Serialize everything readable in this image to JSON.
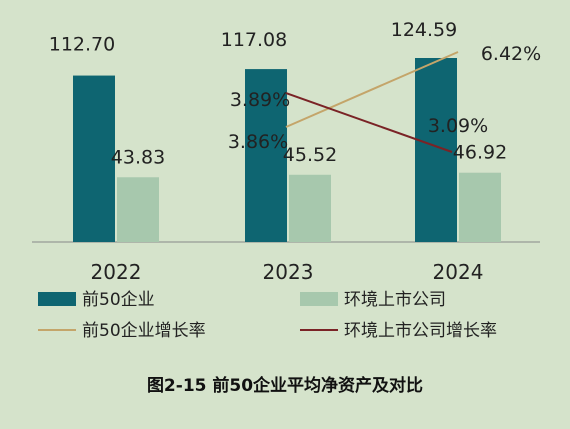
{
  "chart_data": {
    "type": "bar",
    "title": "图2-15 前50企业平均净资产及对比",
    "categories": [
      "2022",
      "2023",
      "2024"
    ],
    "series": [
      {
        "name": "前50企业",
        "kind": "bar",
        "color": "#0e6571",
        "values": [
          112.7,
          117.08,
          124.59
        ],
        "labels": [
          "112.70",
          "117.08",
          "124.59"
        ]
      },
      {
        "name": "环境上市公司",
        "kind": "bar",
        "color": "#a7c8ad",
        "values": [
          43.83,
          45.52,
          46.92
        ],
        "labels": [
          "43.83",
          "45.52",
          "46.92"
        ]
      },
      {
        "name": "前50企业增长率",
        "kind": "line",
        "color": "#c4a56a",
        "x": [
          "2023",
          "2024"
        ],
        "values": [
          3.89,
          6.42
        ],
        "labels": [
          "3.89%",
          "6.42%"
        ]
      },
      {
        "name": "环境上市公司增长率",
        "kind": "line",
        "color": "#7a2326",
        "x": [
          "2023",
          "2024"
        ],
        "values": [
          3.86,
          3.09
        ],
        "labels": [
          "3.86%",
          "3.09%"
        ]
      }
    ],
    "ylim": [
      0,
      140
    ],
    "grid": false,
    "legend_position": "bottom"
  }
}
